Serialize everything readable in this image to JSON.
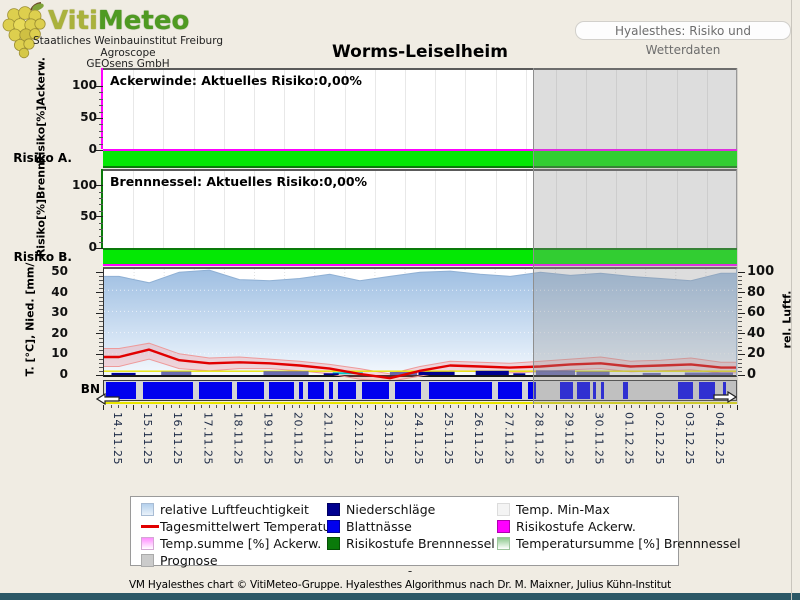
{
  "header": {
    "brand": {
      "viti": "Viti",
      "meteo": "Meteo"
    },
    "org_lines": [
      "Staatliches Weinbauinstitut Freiburg",
      "Agroscope",
      "GEOsens GmbH"
    ],
    "view_button": "Hyalesthes: Risiko und Wetterdaten"
  },
  "title": "Worms-Leiselheim",
  "panels": {
    "ackerwinde": {
      "label": "Ackerwinde: Aktuelles Risiko:0,00%",
      "ylabel": "Risiko[%]Ackerw.",
      "row_label": "Risiko A.",
      "yticks": [
        100,
        50,
        0
      ]
    },
    "brennnessel": {
      "label": "Brennnessel: Aktuelles Risiko:0,00%",
      "ylabel": "Risiko[%]Brenn.",
      "row_label": "Risiko B.",
      "yticks": [
        100,
        50,
        0
      ]
    },
    "weather": {
      "ylabel_left": "T. [°C], Nied. [mm/",
      "ylabel_right": "rel. Luftf.",
      "row_label": "BN",
      "yticks_left": [
        50,
        40,
        30,
        20,
        10,
        0
      ],
      "yticks_right": [
        100,
        80,
        60,
        40,
        20,
        0
      ]
    }
  },
  "legend": {
    "items": [
      {
        "col": 0,
        "row": 0,
        "swatch": "humidity",
        "label": "relative Luftfeuchtigkeit"
      },
      {
        "col": 0,
        "row": 1,
        "swatch": "temp-line",
        "label": "Tagesmittelwert Temperatur"
      },
      {
        "col": 0,
        "row": 2,
        "swatch": "tempsum-ackerw",
        "label": "Temp.summe [%] Ackerw."
      },
      {
        "col": 0,
        "row": 3,
        "swatch": "prognose",
        "label": "Prognose"
      },
      {
        "col": 1,
        "row": 0,
        "swatch": "precip",
        "label": "Niederschläge"
      },
      {
        "col": 1,
        "row": 1,
        "swatch": "leafwetness",
        "label": "Blattnässe"
      },
      {
        "col": 1,
        "row": 2,
        "swatch": "risk-brennnessel",
        "label": "Risikostufe Brennnessel"
      },
      {
        "col": 2,
        "row": 0,
        "swatch": "temp-minmax",
        "label": "Temp. Min-Max"
      },
      {
        "col": 2,
        "row": 1,
        "swatch": "risk-ackerw",
        "label": "Risikostufe Ackerw."
      },
      {
        "col": 2,
        "row": 2,
        "swatch": "tempsum-brennnessel",
        "label": "Temperatursumme [%] Brennnessel"
      }
    ]
  },
  "footer": {
    "dash": "-",
    "credit": "VM Hyalesthes chart © VitiMeteo-Gruppe. Hyalesthes Algorithmus nach Dr. M. Maixner, Julius Kühn-Institut"
  },
  "colors": {
    "page_bg": "#f0ece3",
    "risk_green": "#04e804",
    "magenta": "#ff00ff",
    "dark_green": "#0a7a0a",
    "temp_red": "#e10000",
    "precip_navy": "#00008f",
    "precip_forecast_slate": "#5a5aa8",
    "leaf_wetness_blue": "#0000ee",
    "humidity_fill_top": "#9fbfe2",
    "humidity_fill_bottom": "#f3f8fd",
    "prognose_overlay": "#cfcfcf",
    "tempsum_yellow": "#e8e400",
    "footer_bar": "#2c5866"
  },
  "chart_data": {
    "type": "multi-panel",
    "station": "Worms-Leiselheim",
    "dates": [
      "14.11.25",
      "15.11.25",
      "16.11.25",
      "17.11.25",
      "18.11.25",
      "19.11.25",
      "20.11.25",
      "21.11.25",
      "22.11.25",
      "23.11.25",
      "24.11.25",
      "25.11.25",
      "26.11.25",
      "27.11.25",
      "28.11.25",
      "29.11.25",
      "30.11.25",
      "01.12.25",
      "02.12.25",
      "03.12.25",
      "04.12.25"
    ],
    "prognose_start_date": "28.11.25",
    "prognose_start_day_index": 14,
    "risk_panels": [
      {
        "name": "Ackerwinde",
        "current_risk_pct": 0.0,
        "ylim": [
          0,
          100
        ],
        "risk_level_all_days": "gruen (Risiko 0)"
      },
      {
        "name": "Brennnessel",
        "current_risk_pct": 0.0,
        "ylim": [
          0,
          100
        ],
        "risk_level_all_days": "gruen (Risiko 0)"
      }
    ],
    "weather": {
      "ylim_left": [
        0,
        50
      ],
      "ylim_right": [
        0,
        100
      ],
      "humidity_pct": [
        93,
        87,
        97,
        99,
        90,
        89,
        91,
        95,
        89,
        93,
        97,
        98,
        95,
        93,
        97,
        94,
        96,
        93,
        91,
        89,
        96
      ],
      "temp_mean_c": [
        8.5,
        12,
        7,
        5.5,
        6,
        5.5,
        4.5,
        3,
        0.5,
        -1.5,
        2,
        4.5,
        4,
        3.5,
        4,
        5,
        5.5,
        4,
        4.5,
        5,
        3.5
      ],
      "temp_min_c": [
        4,
        7.5,
        3,
        2,
        3,
        3,
        2,
        0.5,
        -2,
        -3,
        -0.5,
        2,
        1.5,
        1,
        1.5,
        2.5,
        3,
        1.5,
        2,
        2.5,
        1
      ],
      "temp_max_c": [
        12.5,
        15,
        10,
        8,
        8.5,
        7.5,
        6.5,
        5,
        3,
        0.5,
        4,
        6.5,
        6,
        5.5,
        6.5,
        7.5,
        8.5,
        6.5,
        7,
        8,
        6
      ],
      "precip_mm_bars": [
        [
          0.25,
          0.8,
          1.0
        ],
        [
          7.3,
          0.5,
          0.8
        ],
        [
          10.45,
          1.2,
          1.5
        ],
        [
          12.35,
          1.1,
          2.0
        ],
        [
          13.6,
          0.4,
          0.8
        ]
      ],
      "precip_forecast_bars": [
        [
          1.9,
          1.0,
          1.6
        ],
        [
          5.3,
          1.5,
          1.8
        ],
        [
          9.5,
          0.9,
          1.4
        ],
        [
          14.35,
          1.3,
          2.2
        ],
        [
          15.7,
          1.1,
          1.6
        ],
        [
          17.9,
          0.6,
          1.0
        ],
        [
          19.3,
          1.6,
          1.2
        ]
      ],
      "leaf_wetness_segments": [
        [
          0.05,
          1.05
        ],
        [
          1.3,
          2.95
        ],
        [
          3.15,
          4.25
        ],
        [
          4.4,
          5.3
        ],
        [
          5.45,
          6.3
        ],
        [
          6.45,
          6.6
        ],
        [
          6.75,
          7.3
        ],
        [
          7.45,
          7.6
        ],
        [
          7.75,
          8.35
        ],
        [
          8.55,
          9.45
        ],
        [
          9.65,
          10.5
        ],
        [
          10.75,
          12.85
        ],
        [
          13.05,
          13.85
        ],
        [
          14.05,
          14.3
        ],
        [
          15.1,
          15.55
        ],
        [
          15.65,
          16.1
        ],
        [
          16.2,
          16.3
        ],
        [
          16.45,
          16.55
        ],
        [
          17.2,
          17.35
        ],
        [
          19.0,
          19.5
        ],
        [
          19.7,
          20.25
        ],
        [
          20.5,
          20.6
        ]
      ]
    }
  }
}
